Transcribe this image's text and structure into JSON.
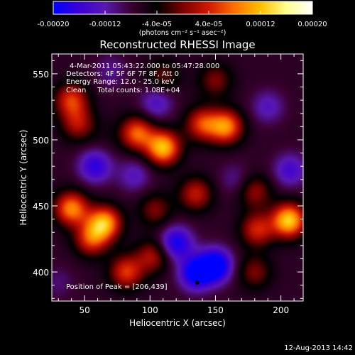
{
  "colorbar": {
    "tick_labels": [
      "-0.00020",
      "-0.00012",
      "-4.0e-05",
      "4.0e-05",
      "0.00012",
      "0.00020"
    ],
    "tick_values": [
      -0.0002,
      -0.00012,
      -4e-05,
      4e-05,
      0.00012,
      0.0002
    ],
    "range": [
      -0.0002,
      0.0002
    ],
    "units": "(photons cm⁻² s⁻¹ asec⁻²)",
    "colors": [
      "#0000ff",
      "#3b00d6",
      "#5a18b0",
      "#3a0030",
      "#000000",
      "#7a0000",
      "#d01800",
      "#ff7000",
      "#ffc000",
      "#ffff90",
      "#ffffff"
    ]
  },
  "chart_data": {
    "type": "heatmap",
    "title": "Reconstructed RHESSI Image",
    "xlabel": "Heliocentric X (arcsec)",
    "ylabel": "Heliocentric Y (arcsec)",
    "xlim": [
      25,
      217
    ],
    "ylim": [
      378,
      565
    ],
    "xticks": [
      50,
      100,
      150,
      200
    ],
    "yticks": [
      400,
      450,
      500,
      550
    ],
    "xtick_labels": [
      "50",
      "100",
      "150",
      "200"
    ],
    "ytick_labels": [
      "400",
      "450",
      "500",
      "550"
    ],
    "annotations": [
      "4-Mar-2011 05:43:22.000 to 05:47:28.000",
      "Detectors: 4F 5F 6F 7F 8F, Att 0",
      "Energy Range: 12.0 - 25.0 keV",
      "Clean     Total counts: 1.08E+04"
    ],
    "peak_label": "Position of Peak = [206,439]",
    "peak": [
      206,
      439
    ],
    "marker": [
      136,
      392
    ],
    "value_range": [
      -0.0002,
      0.0002
    ],
    "grid": false,
    "sources": [
      {
        "x": 40,
        "y": 448,
        "value": 0.00016
      },
      {
        "x": 65,
        "y": 437,
        "value": 0.00018
      },
      {
        "x": 55,
        "y": 425,
        "value": 0.00012
      },
      {
        "x": 40,
        "y": 530,
        "value": 0.00012
      },
      {
        "x": 45,
        "y": 512,
        "value": 9e-05
      },
      {
        "x": 90,
        "y": 505,
        "value": 0.00014
      },
      {
        "x": 110,
        "y": 494,
        "value": 0.00019
      },
      {
        "x": 140,
        "y": 512,
        "value": 0.00012
      },
      {
        "x": 158,
        "y": 510,
        "value": 0.00016
      },
      {
        "x": 135,
        "y": 459,
        "value": 0.0001
      },
      {
        "x": 180,
        "y": 461,
        "value": 8e-05
      },
      {
        "x": 206,
        "y": 439,
        "value": 0.0002
      },
      {
        "x": 182,
        "y": 432,
        "value": 0.00011
      },
      {
        "x": 104,
        "y": 447,
        "value": 7e-05
      },
      {
        "x": 82,
        "y": 400,
        "value": 0.00012
      },
      {
        "x": 102,
        "y": 412,
        "value": 9e-05
      },
      {
        "x": 180,
        "y": 400,
        "value": 7e-05
      },
      {
        "x": 150,
        "y": 545,
        "value": 7e-05
      },
      {
        "x": 110,
        "y": 548,
        "value": 6e-05
      },
      {
        "x": 70,
        "y": 552,
        "value": -4e-05
      },
      {
        "x": 120,
        "y": 422,
        "value": -0.00012
      },
      {
        "x": 135,
        "y": 399,
        "value": -0.00014
      },
      {
        "x": 150,
        "y": 405,
        "value": -0.00016
      },
      {
        "x": 58,
        "y": 480,
        "value": -0.0001
      },
      {
        "x": 88,
        "y": 473,
        "value": -6e-05
      },
      {
        "x": 207,
        "y": 477,
        "value": -8e-05
      },
      {
        "x": 190,
        "y": 525,
        "value": -6e-05
      },
      {
        "x": 105,
        "y": 528,
        "value": -7e-05
      },
      {
        "x": 30,
        "y": 392,
        "value": -3e-05
      },
      {
        "x": 165,
        "y": 470,
        "value": -4e-05
      },
      {
        "x": 65,
        "y": 503,
        "value": 1e-05
      }
    ]
  },
  "footer": {
    "timestamp": "12-Aug-2013 14:42"
  }
}
